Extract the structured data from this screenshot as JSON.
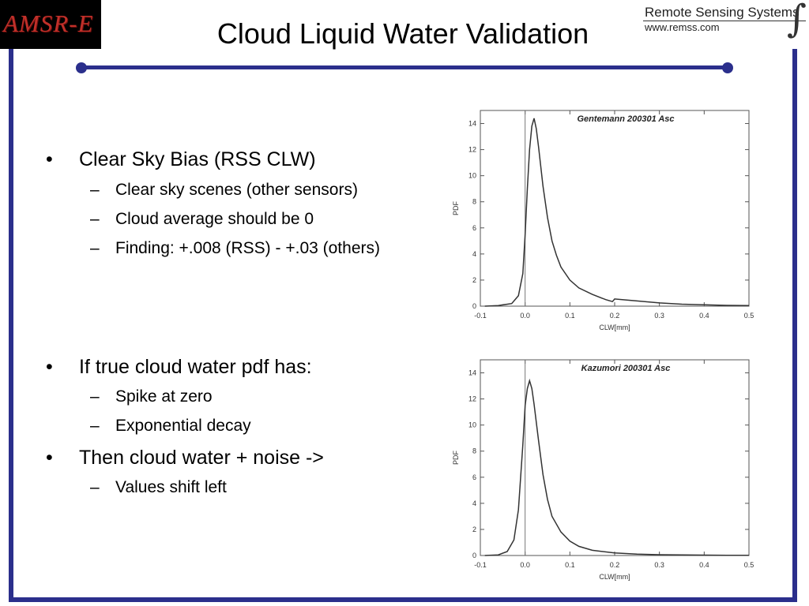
{
  "logo": {
    "text": "AMSR-E"
  },
  "header": {
    "title": "Cloud Liquid Water Validation",
    "rss_name": "Remote Sensing Systems",
    "rss_url": "www.remss.com"
  },
  "colors": {
    "frame": "#2b2f8c",
    "logo_text": "#c0302a",
    "logo_bg": "#000000"
  },
  "bullets": [
    {
      "level": 1,
      "text": "Clear Sky Bias (RSS CLW)"
    },
    {
      "level": 2,
      "text": "Clear sky scenes (other sensors)"
    },
    {
      "level": 2,
      "text": "Cloud average should be 0"
    },
    {
      "level": 2,
      "text": "Finding: +.008 (RSS) - +.03 (others)"
    },
    {
      "level": 1,
      "text": "If true cloud water pdf has:"
    },
    {
      "level": 2,
      "text": "Spike at zero"
    },
    {
      "level": 2,
      "text": "Exponential decay"
    },
    {
      "level": 1,
      "text": "Then cloud water + noise ->"
    },
    {
      "level": 2,
      "text": "Values shift left"
    }
  ],
  "chart_data": [
    {
      "type": "line",
      "title": "Gentemann 200301 Asc",
      "xlabel": "CLW[mm]",
      "ylabel": "PDF",
      "xlim": [
        -0.1,
        0.5
      ],
      "ylim": [
        0,
        15
      ],
      "xticks": [
        "-0.1",
        "0.0",
        "0.1",
        "0.2",
        "0.3",
        "0.4",
        "0.5"
      ],
      "yticks": [
        "0",
        "2",
        "4",
        "6",
        "8",
        "10",
        "12",
        "14"
      ],
      "vline_x": 0.0,
      "x": [
        -0.09,
        -0.06,
        -0.03,
        -0.015,
        -0.005,
        0.0,
        0.005,
        0.01,
        0.015,
        0.02,
        0.025,
        0.03,
        0.04,
        0.05,
        0.06,
        0.07,
        0.08,
        0.1,
        0.12,
        0.15,
        0.18,
        0.195,
        0.2,
        0.25,
        0.3,
        0.35,
        0.4,
        0.45,
        0.5
      ],
      "y": [
        0,
        0.05,
        0.2,
        0.8,
        2.5,
        5.5,
        9.0,
        12.0,
        13.8,
        14.4,
        13.6,
        12.2,
        9.2,
        6.8,
        5.0,
        3.9,
        3.0,
        2.0,
        1.4,
        0.9,
        0.5,
        0.35,
        0.55,
        0.4,
        0.25,
        0.15,
        0.1,
        0.06,
        0.04
      ]
    },
    {
      "type": "line",
      "title": "Kazumori 200301 Asc",
      "xlabel": "CLW[mm]",
      "ylabel": "PDF",
      "xlim": [
        -0.1,
        0.5
      ],
      "ylim": [
        0,
        15
      ],
      "xticks": [
        "-0.1",
        "0.0",
        "0.1",
        "0.2",
        "0.3",
        "0.4",
        "0.5"
      ],
      "yticks": [
        "0",
        "2",
        "4",
        "6",
        "8",
        "10",
        "12",
        "14"
      ],
      "vline_x": 0.0,
      "x": [
        -0.09,
        -0.06,
        -0.04,
        -0.025,
        -0.015,
        -0.005,
        0.0,
        0.005,
        0.01,
        0.015,
        0.02,
        0.03,
        0.04,
        0.05,
        0.06,
        0.08,
        0.1,
        0.12,
        0.15,
        0.2,
        0.25,
        0.3,
        0.35,
        0.4,
        0.45,
        0.5
      ],
      "y": [
        0,
        0.05,
        0.3,
        1.2,
        3.5,
        8.5,
        11.5,
        12.8,
        13.4,
        12.8,
        11.6,
        8.8,
        6.2,
        4.3,
        3.0,
        1.8,
        1.1,
        0.7,
        0.4,
        0.2,
        0.1,
        0.06,
        0.04,
        0.03,
        0.02,
        0.02
      ]
    }
  ]
}
